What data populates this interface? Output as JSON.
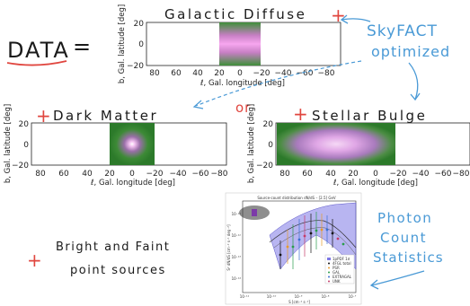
{
  "annotations": {
    "data": "DATA",
    "equals": "=",
    "skyfact": "SkyFACT",
    "optimized": "optimized",
    "or": "or",
    "bright_faint_1": "Bright and Faint",
    "bright_faint_2": "point sources",
    "photon_1": "Photon",
    "photon_2": "Count",
    "photon_3": "Statistics",
    "plus_sign": "+"
  },
  "maps": {
    "galactic_diffuse": {
      "title": "Galactic Diffuse",
      "xlabel": "ℓ, Gal. longitude [deg]",
      "ylabel": "b, Gal. latitude [deg]",
      "xticks": [
        "80",
        "60",
        "40",
        "20",
        "0",
        "−20",
        "−40",
        "−60",
        "−80"
      ],
      "yticks": [
        "20",
        "0",
        "−20"
      ]
    },
    "dark_matter": {
      "title": "Dark Matter",
      "xlabel": "ℓ, Gal. longitude [deg]",
      "ylabel": "b, Gal. latitude [deg]",
      "xticks": [
        "80",
        "60",
        "40",
        "20",
        "0",
        "−20",
        "−40",
        "−60",
        "−80"
      ],
      "yticks": [
        "20",
        "0",
        "−20"
      ]
    },
    "stellar_bulge": {
      "title": "Stellar Bulge",
      "xlabel": "ℓ, Gal. longitude [deg]",
      "ylabel": "b, Gal. latitude [deg]",
      "xticks": [
        "80",
        "60",
        "40",
        "20",
        "0",
        "−20",
        "−40",
        "−60",
        "−80"
      ],
      "yticks": [
        "20",
        "0",
        "−20"
      ]
    }
  },
  "inset_plot": {
    "title": "Source-count distribution dN/dS – [2.5] GeV",
    "xlabel": "S [cm⁻² s⁻¹]",
    "ylabel": "S² dN/dS [cm⁻² s⁻¹ deg⁻²]",
    "legend": [
      "1pPDF 1σ",
      "4FGL total",
      "PSR",
      "GAL",
      "EXTRAGAL",
      "UNK"
    ],
    "xticks": [
      "10⁻¹¹",
      "10⁻¹⁰",
      "10⁻⁹",
      "10⁻⁸",
      "10⁻⁷"
    ],
    "yticks": [
      "10⁻¹¹",
      "10⁻¹²",
      "10⁻¹³",
      "10⁻¹⁴"
    ]
  },
  "colors": {
    "ink": "#1a1a1a",
    "red": "#e0463f",
    "blue": "#4a9ad6",
    "map_green": "#2e7d32",
    "map_magenta": "#e58ad8",
    "band": "#7d78e6"
  }
}
